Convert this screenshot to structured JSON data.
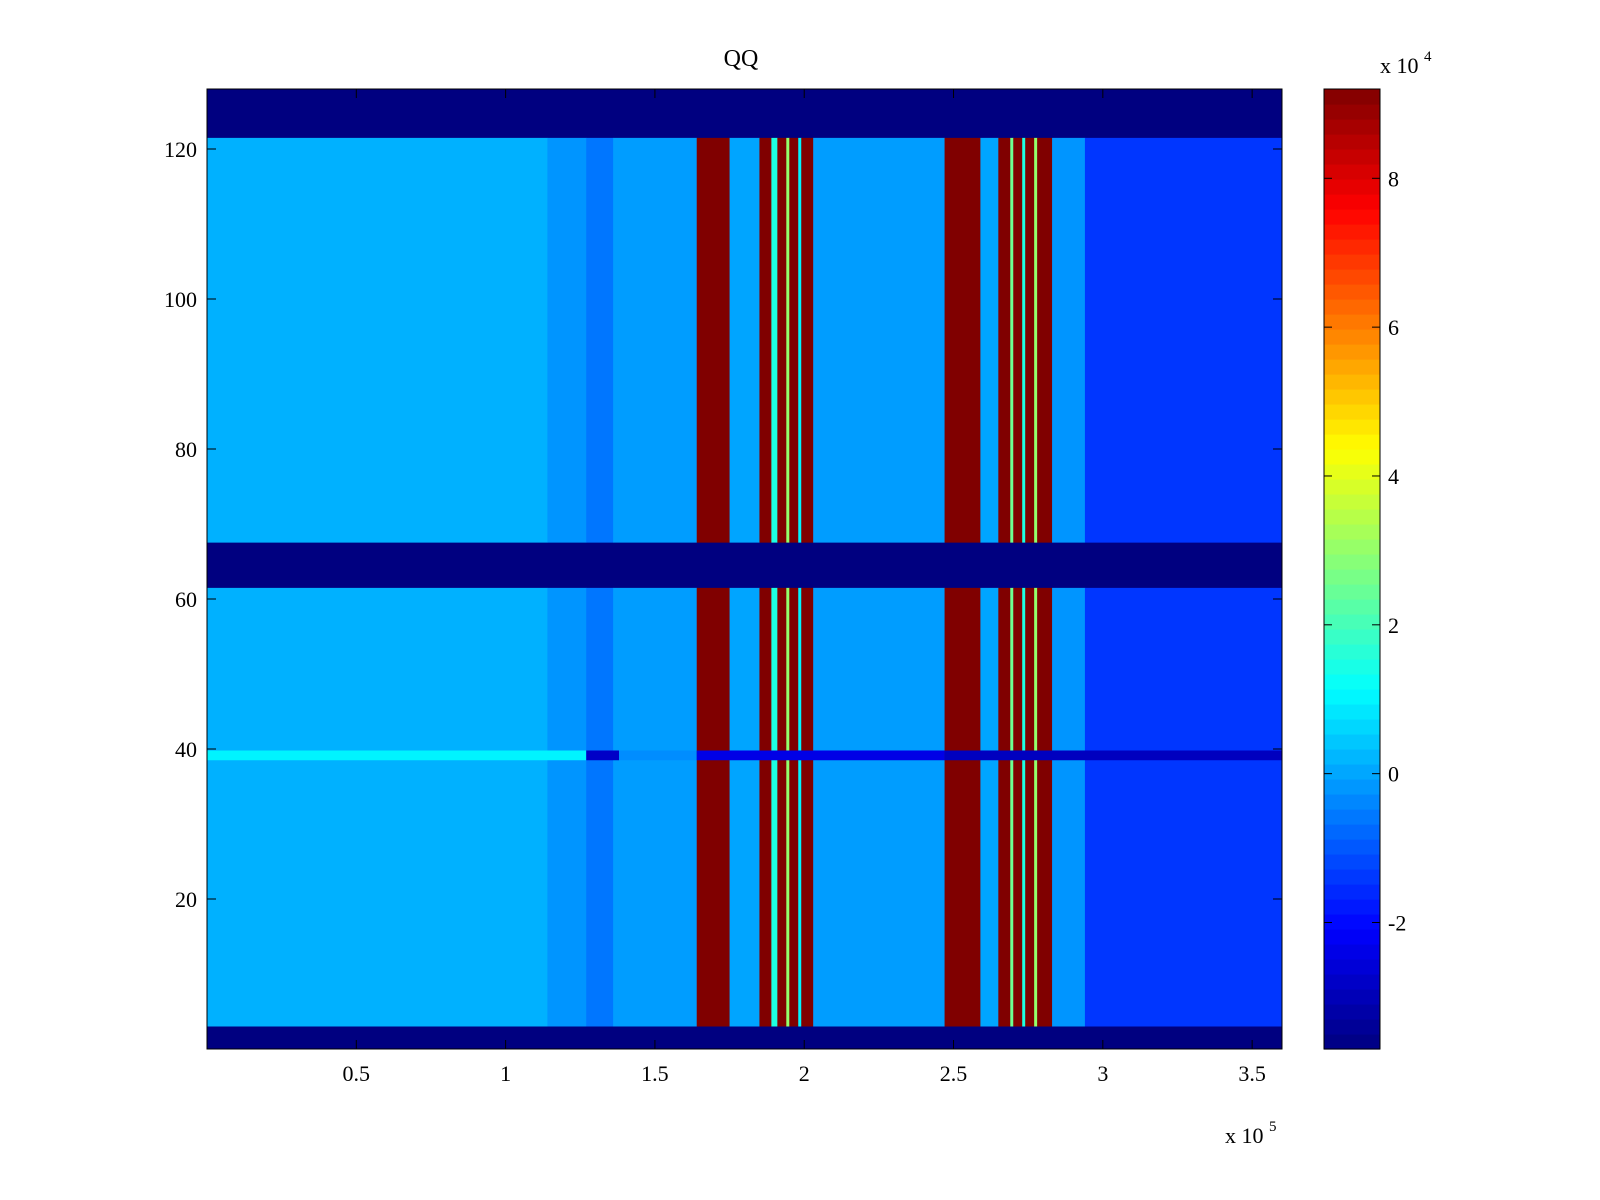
{
  "chart_data": {
    "type": "heatmap",
    "title": "QQ",
    "xlabel": "",
    "ylabel": "",
    "x_multiplier_label": "x 10",
    "x_multiplier_exp": "5",
    "xlim": [
      0,
      3.6
    ],
    "ylim": [
      0,
      128
    ],
    "x_ticks": [
      0.5,
      1,
      1.5,
      2,
      2.5,
      3,
      3.5
    ],
    "x_tick_labels": [
      "0.5",
      "1",
      "1.5",
      "2",
      "2.5",
      "3",
      "3.5"
    ],
    "y_ticks": [
      20,
      40,
      60,
      80,
      100,
      120
    ],
    "y_tick_labels": [
      "20",
      "40",
      "60",
      "80",
      "100",
      "120"
    ],
    "colorbar": {
      "multiplier_label": "x 10",
      "multiplier_exp": "4",
      "range": [
        -3.7,
        9.2
      ],
      "ticks": [
        -2,
        0,
        2,
        4,
        6,
        8
      ],
      "tick_labels": [
        "-2",
        "0",
        "2",
        "4",
        "6",
        "8"
      ],
      "colormap": "jet"
    },
    "min_value_rows": [
      [
        0,
        3
      ],
      [
        61.5,
        67.5
      ],
      [
        121.5,
        128
      ]
    ],
    "columns": [
      {
        "x": [
          0,
          1.14
        ],
        "value": 0.15
      },
      {
        "x": [
          1.14,
          1.27
        ],
        "value": -0.2
      },
      {
        "x": [
          1.27,
          1.36
        ],
        "value": -0.6
      },
      {
        "x": [
          1.36,
          1.64
        ],
        "value": -0.1
      },
      {
        "x": [
          1.64,
          1.75
        ],
        "value": 9.2
      },
      {
        "x": [
          1.75,
          1.85
        ],
        "value": 0.0
      },
      {
        "x": [
          1.85,
          1.89
        ],
        "value": 9.2
      },
      {
        "x": [
          1.89,
          1.91
        ],
        "value": 1.5
      },
      {
        "x": [
          1.91,
          1.94
        ],
        "value": 9.2
      },
      {
        "x": [
          1.94,
          1.95
        ],
        "value": 3.0
      },
      {
        "x": [
          1.95,
          1.98
        ],
        "value": 9.2
      },
      {
        "x": [
          1.98,
          1.99
        ],
        "value": 1.0
      },
      {
        "x": [
          1.99,
          2.03
        ],
        "value": 9.2
      },
      {
        "x": [
          2.03,
          2.47
        ],
        "value": -0.1
      },
      {
        "x": [
          2.47,
          2.59
        ],
        "value": 9.2
      },
      {
        "x": [
          2.59,
          2.65
        ],
        "value": 0.0
      },
      {
        "x": [
          2.65,
          2.69
        ],
        "value": 9.2
      },
      {
        "x": [
          2.69,
          2.7
        ],
        "value": 2.5
      },
      {
        "x": [
          2.7,
          2.73
        ],
        "value": 9.2
      },
      {
        "x": [
          2.73,
          2.74
        ],
        "value": 1.5
      },
      {
        "x": [
          2.74,
          2.77
        ],
        "value": 9.2
      },
      {
        "x": [
          2.77,
          2.78
        ],
        "value": 3.0
      },
      {
        "x": [
          2.78,
          2.8
        ],
        "value": 9.2
      },
      {
        "x": [
          2.8,
          2.83
        ],
        "value": 9.2
      },
      {
        "x": [
          2.83,
          2.94
        ],
        "value": -0.2
      },
      {
        "x": [
          2.94,
          3.6
        ],
        "value": -1.4
      }
    ],
    "row_band": {
      "y": [
        38.5,
        39.8
      ],
      "segments": [
        {
          "x": [
            0,
            1.27
          ],
          "value": 1.0
        },
        {
          "x": [
            1.27,
            1.38
          ],
          "value": -2.8
        },
        {
          "x": [
            1.38,
            1.64
          ],
          "value": -0.3
        },
        {
          "x": [
            1.64,
            2.47
          ],
          "value": -2.4
        },
        {
          "x": [
            2.47,
            3.6
          ],
          "value": -2.9
        }
      ]
    }
  }
}
